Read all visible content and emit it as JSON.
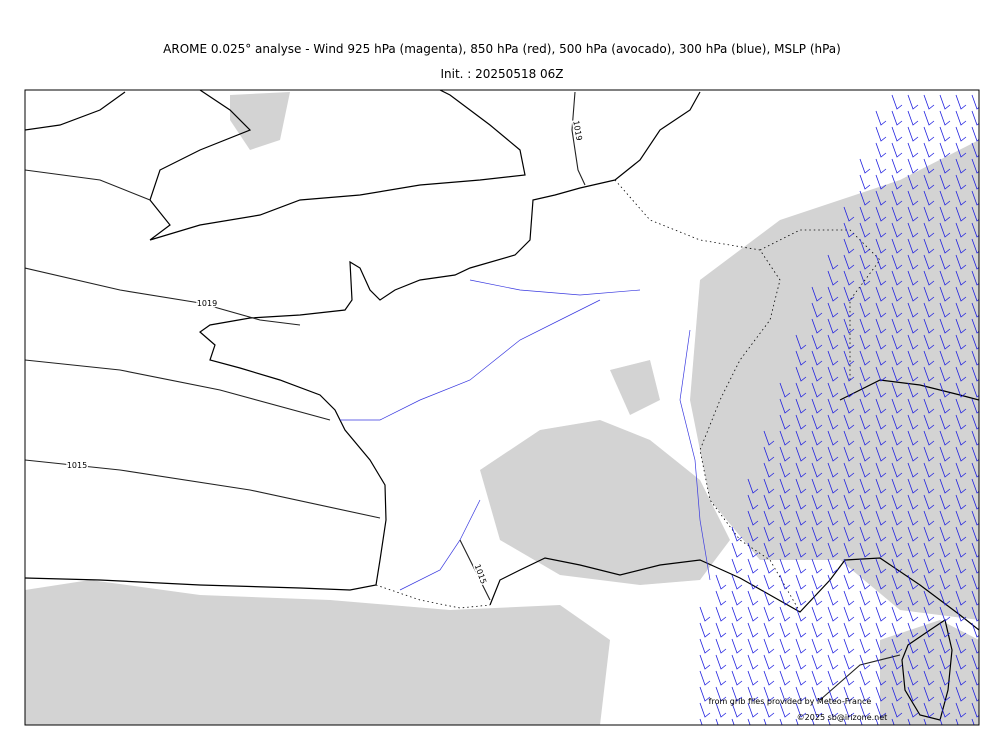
{
  "header": {
    "title": "AROME 0.025° analyse - Wind 925 hPa (magenta), 850 hPa (red), 500 hPa (avocado), 300 hPa (blue), MSLP (hPa)",
    "subtitle": "Init. : 20250518 06Z"
  },
  "isobar_labels": [
    "1019",
    "1019",
    "1015",
    "1015"
  ],
  "credits": [
    "from grib files provided by Meteo-France",
    "©2025 sb@irizone.net"
  ]
}
